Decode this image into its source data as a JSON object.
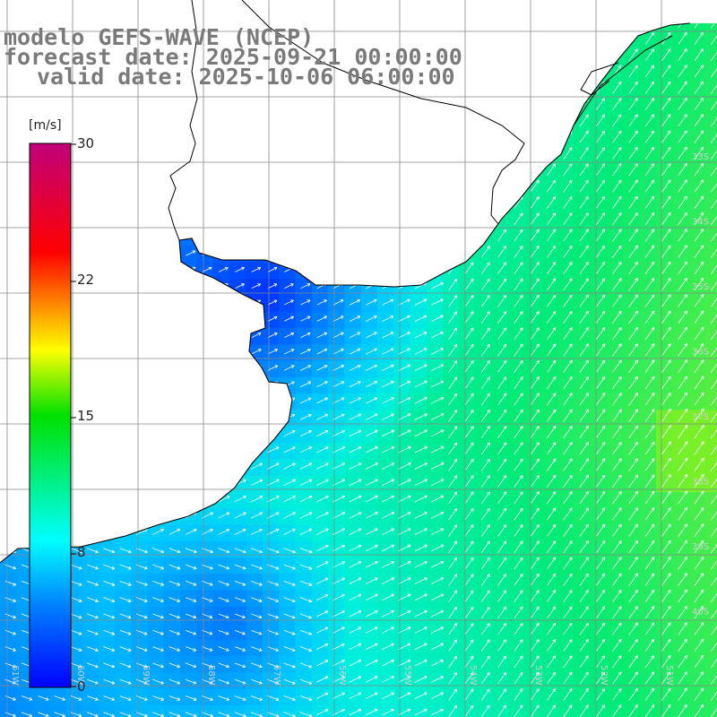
{
  "header": {
    "model_line": "modelo GEFS-WAVE (NCEP)",
    "forecast_line": "forecast date: 2025-09-21 00:00:00",
    "valid_line": "valid date: 2025-10-06 06:00:00"
  },
  "colorbar": {
    "unit": "[m/s]",
    "ticks": [
      "30",
      "22",
      "15",
      "8",
      "0"
    ],
    "stops": [
      "#0000ff",
      "#0080ff",
      "#00ffff",
      "#00ff00",
      "#ffff00",
      "#ff0000",
      "#c0007a"
    ]
  },
  "map": {
    "field": "wind speed with direction arrows",
    "land_color": "#ffffff",
    "grid_color": "#888888",
    "lon_labels": [
      "61W",
      "60W",
      "59W",
      "58W",
      "57W",
      "56W",
      "55W",
      "54W",
      "53W",
      "52W",
      "51W"
    ],
    "lat_labels": [
      "33S",
      "34S",
      "35S",
      "36S",
      "37S",
      "38S",
      "39S",
      "40S"
    ]
  }
}
